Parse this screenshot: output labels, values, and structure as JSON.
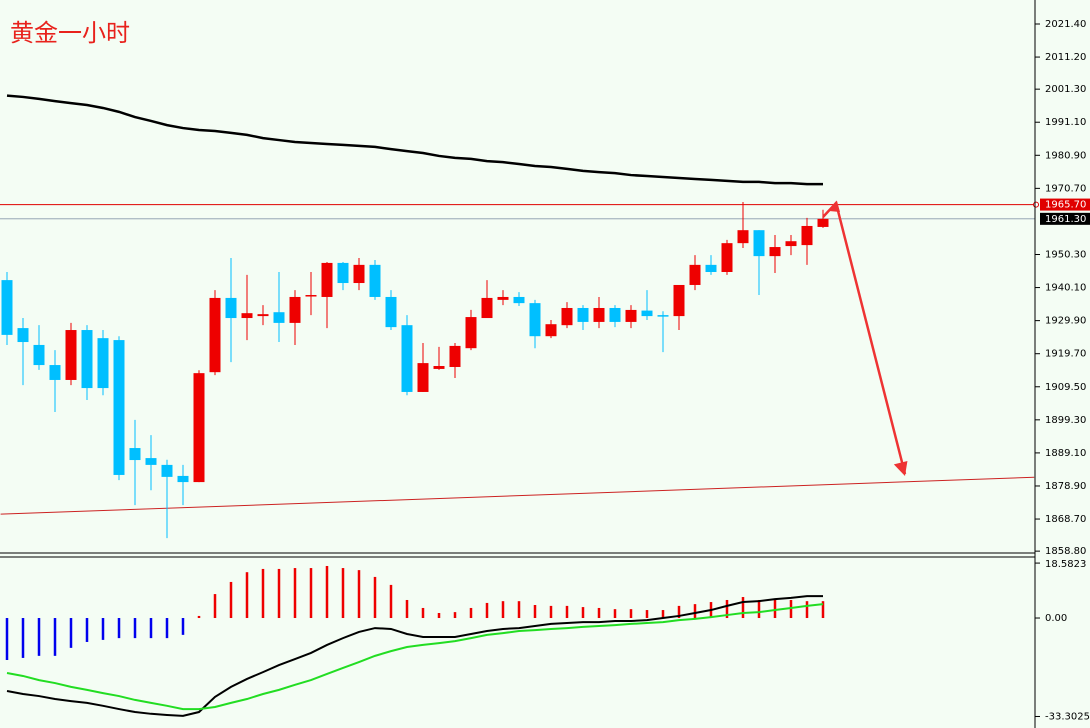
{
  "title": "黄金一小时",
  "chart_data": [
    {
      "type": "candlestick",
      "up_color": "#ee0000",
      "down_color": "#00bfff",
      "open": [
        1942.4,
        1927.6,
        1922.4,
        1916.2,
        1911.6,
        1927.0,
        1924.5,
        1923.9,
        1890.6,
        1887.5,
        1885.4,
        1882.0,
        1880.1,
        1914.0,
        1936.9,
        1930.7,
        1931.3,
        1932.5,
        1929.2,
        1937.5,
        1937.2,
        1947.7,
        1941.5,
        1947.1,
        1937.2,
        1928.5,
        1907.9,
        1915.0,
        1915.6,
        1921.4,
        1930.7,
        1936.3,
        1937.2,
        1935.3,
        1925.1,
        1928.5,
        1933.8,
        1929.5,
        1933.8,
        1929.5,
        1933.0,
        1931.6,
        1931.3,
        1940.9,
        1947.1,
        1944.9,
        1953.8,
        1957.8,
        1949.8,
        1952.9,
        1953.2,
        1958.8
      ],
      "high": [
        1944.9,
        1930.7,
        1928.5,
        1920.8,
        1929.2,
        1928.5,
        1927.0,
        1925.1,
        1899.3,
        1894.6,
        1887.0,
        1885.4,
        1914.6,
        1939.3,
        1949.2,
        1944.0,
        1934.7,
        1944.9,
        1939.3,
        1944.9,
        1948.0,
        1948.0,
        1949.2,
        1948.6,
        1939.3,
        1931.6,
        1923.0,
        1921.8,
        1923.0,
        1933.2,
        1942.4,
        1939.3,
        1938.7,
        1936.3,
        1930.1,
        1935.6,
        1934.7,
        1937.2,
        1934.7,
        1934.7,
        1939.3,
        1932.8,
        1940.9,
        1950.1,
        1950.1,
        1954.8,
        1966.5,
        1957.8,
        1956.3,
        1956.3,
        1961.6,
        1964.1
      ],
      "low": [
        1922.4,
        1910.0,
        1914.7,
        1901.7,
        1910.0,
        1905.4,
        1906.9,
        1880.7,
        1873.0,
        1877.6,
        1862.8,
        1873.0,
        1880.1,
        1913.1,
        1917.1,
        1923.9,
        1928.5,
        1923.3,
        1922.4,
        1931.6,
        1927.6,
        1939.3,
        1939.3,
        1936.3,
        1927.0,
        1906.9,
        1907.9,
        1914.7,
        1912.2,
        1920.8,
        1930.7,
        1934.7,
        1934.4,
        1921.4,
        1924.5,
        1927.6,
        1927.0,
        1927.6,
        1927.9,
        1927.6,
        1930.1,
        1920.2,
        1927.0,
        1939.3,
        1944.0,
        1944.0,
        1952.3,
        1937.8,
        1944.6,
        1950.1,
        1947.1,
        1958.5
      ],
      "close": [
        1925.5,
        1923.3,
        1916.2,
        1911.6,
        1927.0,
        1909.1,
        1909.1,
        1882.3,
        1886.9,
        1885.4,
        1881.7,
        1880.1,
        1913.7,
        1936.9,
        1930.7,
        1932.2,
        1931.9,
        1929.2,
        1937.2,
        1937.8,
        1947.7,
        1941.5,
        1947.1,
        1937.2,
        1927.9,
        1907.9,
        1916.8,
        1915.9,
        1922.1,
        1931.0,
        1936.9,
        1937.2,
        1935.3,
        1925.1,
        1928.8,
        1933.8,
        1929.5,
        1933.8,
        1929.5,
        1933.2,
        1931.3,
        1931.3,
        1940.9,
        1947.1,
        1944.9,
        1953.8,
        1957.8,
        1949.8,
        1952.6,
        1954.4,
        1959.1,
        1961.3
      ],
      "ma": {
        "color": "#000000",
        "values": [
          1999.3,
          1998.9,
          1998.3,
          1997.6,
          1997.0,
          1996.4,
          1995.5,
          1994.3,
          1992.7,
          1991.5,
          1990.2,
          1989.3,
          1988.7,
          1988.4,
          1987.8,
          1987.2,
          1986.2,
          1985.6,
          1985.0,
          1984.7,
          1984.4,
          1984.1,
          1983.8,
          1983.5,
          1982.8,
          1982.2,
          1981.6,
          1980.7,
          1980.1,
          1979.8,
          1979.1,
          1978.8,
          1978.2,
          1977.6,
          1977.3,
          1976.7,
          1976.1,
          1975.7,
          1975.4,
          1974.8,
          1974.5,
          1974.2,
          1973.9,
          1973.6,
          1973.3,
          1973.0,
          1972.7,
          1972.7,
          1972.3,
          1972.3,
          1972.0,
          1972.0
        ]
      },
      "level": {
        "value": 1965.7,
        "label": "1965.70",
        "color": "#e00000"
      },
      "last": {
        "value": 1961.3,
        "label": "1961.30"
      },
      "trendline": {
        "color": "#cc2222",
        "x": [
          -0.4,
          64.2
        ],
        "values": [
          1870.2,
          1881.6
        ]
      },
      "ylim": [
        1857.3,
        2028.8
      ],
      "yticks": [
        {
          "value": 2021.4,
          "label": "2021.40"
        },
        {
          "value": 2011.2,
          "label": "2011.20"
        },
        {
          "value": 2001.3,
          "label": "2001.30"
        },
        {
          "value": 1991.1,
          "label": "1991.10"
        },
        {
          "value": 1980.9,
          "label": "1980.90"
        },
        {
          "value": 1970.7,
          "label": "1970.70"
        },
        {
          "value": 1950.3,
          "label": "1950.30"
        },
        {
          "value": 1940.1,
          "label": "1940.10"
        },
        {
          "value": 1929.9,
          "label": "1929.90"
        },
        {
          "value": 1919.7,
          "label": "1919.70"
        },
        {
          "value": 1909.5,
          "label": "1909.50"
        },
        {
          "value": 1899.3,
          "label": "1899.30"
        },
        {
          "value": 1889.1,
          "label": "1889.10"
        },
        {
          "value": 1878.9,
          "label": "1878.90"
        },
        {
          "value": 1868.7,
          "label": "1868.70"
        },
        {
          "value": 1858.8,
          "label": "1858.80"
        }
      ]
    },
    {
      "type": "macd",
      "histogram": {
        "up_color": "#ee0000",
        "down_color": "#0000ee",
        "values": [
          -14.2,
          -13.5,
          -12.8,
          -12.8,
          -10.1,
          -8.1,
          -7.4,
          -6.8,
          -6.8,
          -6.8,
          -6.8,
          -5.7,
          0.7,
          8.1,
          12.2,
          15.5,
          16.6,
          16.6,
          16.9,
          16.9,
          17.6,
          16.9,
          16.2,
          13.9,
          11.2,
          6.1,
          3.4,
          1.7,
          2.0,
          3.4,
          5.1,
          5.7,
          5.7,
          4.4,
          4.1,
          4.1,
          3.7,
          3.4,
          3.0,
          3.0,
          2.7,
          2.7,
          4.1,
          4.7,
          5.4,
          6.1,
          7.1,
          6.1,
          6.1,
          6.1,
          5.7,
          5.7
        ]
      },
      "macd": {
        "color": "#000000",
        "values": [
          -24.7,
          -25.7,
          -26.4,
          -27.4,
          -28.1,
          -28.7,
          -29.7,
          -30.8,
          -31.8,
          -32.4,
          -32.8,
          -33.1,
          -31.8,
          -26.7,
          -23.3,
          -20.6,
          -18.3,
          -15.9,
          -13.9,
          -11.8,
          -9.1,
          -6.8,
          -4.7,
          -3.4,
          -3.7,
          -5.4,
          -6.4,
          -6.4,
          -6.4,
          -5.4,
          -4.4,
          -3.7,
          -3.4,
          -2.7,
          -2.0,
          -1.7,
          -1.4,
          -1.4,
          -1.0,
          -1.0,
          -0.7,
          0.0,
          0.7,
          1.7,
          2.7,
          4.1,
          5.4,
          5.7,
          6.4,
          6.8,
          7.4,
          7.4
        ]
      },
      "signal": {
        "color": "#22dd22",
        "values": [
          -18.6,
          -19.6,
          -21.0,
          -22.0,
          -23.3,
          -24.3,
          -25.4,
          -26.4,
          -27.7,
          -28.7,
          -29.7,
          -30.8,
          -30.8,
          -30.1,
          -28.7,
          -27.4,
          -25.7,
          -24.3,
          -22.6,
          -21.0,
          -18.9,
          -16.9,
          -14.9,
          -12.8,
          -11.2,
          -9.8,
          -9.1,
          -8.5,
          -7.8,
          -6.8,
          -5.7,
          -5.1,
          -4.4,
          -4.1,
          -3.7,
          -3.4,
          -3.0,
          -2.7,
          -2.4,
          -2.0,
          -1.7,
          -1.4,
          -0.7,
          -0.3,
          0.3,
          1.0,
          1.7,
          2.0,
          2.7,
          3.4,
          4.1,
          4.7
        ]
      },
      "ylim": [
        -37.2,
        20.3
      ],
      "yticks": [
        18.5823,
        {
          "value": 0,
          "label": "0.00"
        },
        -33.3025
      ]
    }
  ]
}
